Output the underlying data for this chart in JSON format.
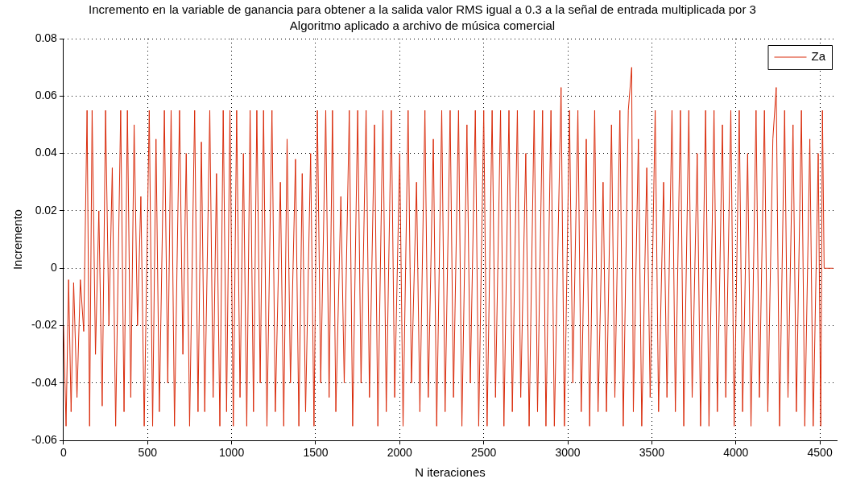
{
  "chart_data": {
    "type": "line",
    "title": "Incremento en la variable de ganancia para obtener a la salida valor RMS igual a 0.3 a la señal de entrada multiplicada por 3",
    "subtitle": "Algoritmo aplicado a archivo de música comercial",
    "xlabel": "N iteraciones",
    "ylabel": "Incremento",
    "x": [
      0,
      15,
      30,
      45,
      60,
      80,
      100,
      120,
      140,
      155,
      170,
      190,
      210,
      230,
      250,
      270,
      290,
      310,
      340,
      360,
      380,
      400,
      420,
      440,
      460,
      480,
      510,
      530,
      550,
      570,
      600,
      620,
      640,
      660,
      690,
      710,
      730,
      750,
      780,
      800,
      820,
      840,
      870,
      890,
      910,
      930,
      950,
      970,
      990,
      1010,
      1030,
      1050,
      1070,
      1090,
      1110,
      1130,
      1150,
      1170,
      1190,
      1210,
      1240,
      1260,
      1290,
      1310,
      1330,
      1350,
      1380,
      1400,
      1420,
      1440,
      1470,
      1490,
      1510,
      1530,
      1560,
      1580,
      1600,
      1620,
      1650,
      1670,
      1700,
      1720,
      1750,
      1770,
      1800,
      1820,
      1850,
      1870,
      1900,
      1920,
      1950,
      1970,
      2000,
      2020,
      2050,
      2070,
      2100,
      2120,
      2150,
      2170,
      2200,
      2220,
      2250,
      2270,
      2300,
      2320,
      2350,
      2370,
      2400,
      2420,
      2450,
      2470,
      2500,
      2520,
      2550,
      2570,
      2600,
      2620,
      2650,
      2670,
      2700,
      2720,
      2750,
      2770,
      2800,
      2820,
      2850,
      2870,
      2900,
      2920,
      2960,
      2980,
      3010,
      3030,
      3060,
      3080,
      3110,
      3130,
      3160,
      3180,
      3210,
      3230,
      3260,
      3280,
      3310,
      3330,
      3360,
      3380,
      3390,
      3420,
      3440,
      3470,
      3490,
      3520,
      3540,
      3570,
      3590,
      3620,
      3640,
      3670,
      3690,
      3720,
      3740,
      3770,
      3790,
      3820,
      3840,
      3870,
      3890,
      3920,
      3940,
      3970,
      3990,
      4020,
      4040,
      4070,
      4090,
      4120,
      4140,
      4170,
      4190,
      4220,
      4240,
      4260,
      4290,
      4310,
      4340,
      4360,
      4390,
      4410,
      4440,
      4460,
      4490,
      4505,
      4515,
      4525,
      4580
    ],
    "series": [
      {
        "name": "Za",
        "color": "#d92b0b",
        "values": [
          -0.02,
          -0.055,
          -0.004,
          -0.05,
          -0.005,
          -0.045,
          -0.004,
          -0.022,
          0.055,
          -0.055,
          0.055,
          -0.03,
          0.02,
          -0.048,
          0.055,
          -0.02,
          0.035,
          -0.055,
          0.055,
          -0.05,
          0.055,
          -0.045,
          0.05,
          -0.02,
          0.025,
          -0.055,
          0.055,
          -0.055,
          0.045,
          -0.05,
          0.055,
          -0.04,
          0.055,
          -0.055,
          0.055,
          -0.03,
          0.04,
          -0.055,
          0.055,
          -0.05,
          0.044,
          -0.05,
          0.055,
          -0.045,
          0.033,
          -0.055,
          0.055,
          -0.05,
          0.055,
          -0.055,
          0.055,
          -0.045,
          0.04,
          -0.055,
          0.055,
          -0.05,
          0.055,
          -0.04,
          0.055,
          -0.055,
          0.055,
          -0.05,
          0.03,
          -0.055,
          0.045,
          -0.04,
          0.038,
          -0.055,
          0.033,
          -0.05,
          0.04,
          -0.055,
          0.055,
          -0.04,
          0.055,
          -0.045,
          0.055,
          -0.05,
          0.025,
          -0.04,
          0.055,
          -0.055,
          0.055,
          -0.04,
          0.055,
          -0.045,
          0.05,
          -0.055,
          0.055,
          -0.05,
          0.055,
          -0.045,
          0.04,
          -0.055,
          0.055,
          -0.04,
          0.03,
          -0.05,
          0.055,
          -0.045,
          0.045,
          -0.055,
          0.055,
          -0.05,
          0.055,
          -0.045,
          0.055,
          -0.055,
          0.05,
          -0.04,
          0.055,
          -0.055,
          0.055,
          -0.055,
          0.055,
          -0.045,
          0.055,
          -0.055,
          0.055,
          -0.05,
          0.055,
          -0.045,
          0.04,
          -0.055,
          0.055,
          -0.05,
          0.055,
          -0.055,
          0.055,
          -0.055,
          0.063,
          -0.055,
          0.055,
          -0.04,
          0.055,
          -0.05,
          0.045,
          -0.055,
          0.055,
          -0.05,
          0.03,
          -0.05,
          0.05,
          -0.045,
          0.055,
          -0.055,
          0.055,
          0.07,
          -0.05,
          0.045,
          -0.055,
          0.035,
          -0.045,
          0.055,
          -0.05,
          0.03,
          -0.045,
          0.055,
          -0.05,
          0.055,
          -0.055,
          0.055,
          -0.045,
          0.04,
          -0.055,
          0.055,
          -0.055,
          0.055,
          -0.05,
          0.05,
          -0.045,
          0.055,
          -0.055,
          0.055,
          -0.05,
          0.04,
          -0.055,
          0.055,
          -0.045,
          0.055,
          -0.05,
          0.045,
          0.063,
          -0.055,
          0.055,
          -0.045,
          0.05,
          -0.05,
          0.055,
          -0.055,
          0.045,
          -0.055,
          0.04,
          -0.055,
          0.055,
          0,
          0
        ]
      }
    ],
    "xlim": [
      0,
      4600
    ],
    "xticks": [
      0,
      500,
      1000,
      1500,
      2000,
      2500,
      3000,
      3500,
      4000,
      4500
    ],
    "ylim": [
      -0.06,
      0.08
    ],
    "yticks": [
      -0.06,
      -0.04,
      -0.02,
      0,
      0.02,
      0.04,
      0.06,
      0.08
    ],
    "grid": true,
    "legend": "top right",
    "marker": "none",
    "line_style": "solid"
  }
}
